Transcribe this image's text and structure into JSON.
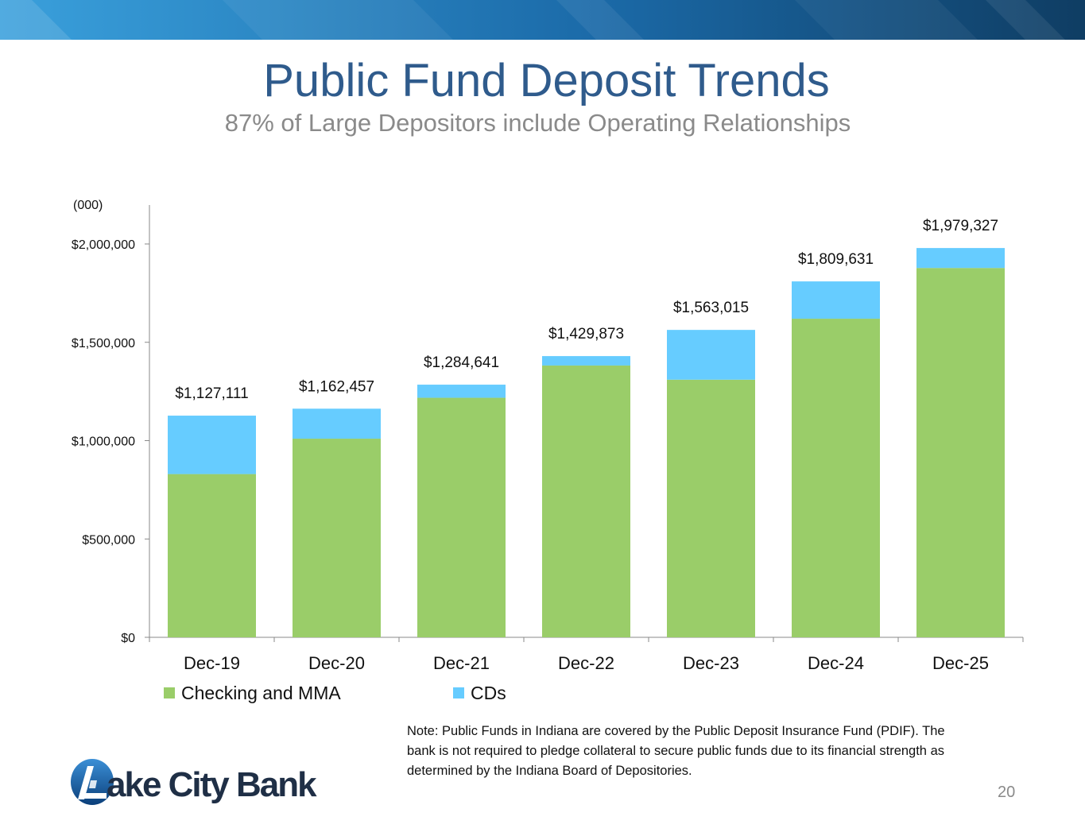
{
  "slide": {
    "title": "Public Fund Deposit Trends",
    "subtitle": "87% of Large Depositors include Operating Relationships",
    "units": "(000)",
    "note": "Note: Public Funds in Indiana are covered by the Public Deposit Insurance Fund (PDIF). The bank is not required to pledge collateral to secure public funds due to its financial strength as determined by the Indiana Board of Depositories.",
    "page_number": "20",
    "logo_text": "Lake City Bank"
  },
  "colors": {
    "title": "#2f5b8c",
    "checking": "#9acd69",
    "cds": "#66ccff",
    "banner_dark": "#0f3d63",
    "banner_light": "#3aa0dc"
  },
  "chart_data": {
    "type": "bar",
    "stacked": true,
    "categories": [
      "Dec-19",
      "Dec-20",
      "Dec-21",
      "Dec-22",
      "Dec-23",
      "Dec-24",
      "Dec-25"
    ],
    "series": [
      {
        "name": "Checking and MMA",
        "color": "#9acd69",
        "values": [
          830000,
          1010000,
          1218000,
          1382000,
          1310000,
          1620000,
          1878000
        ]
      },
      {
        "name": "CDs",
        "color": "#66ccff",
        "values": [
          297111,
          152457,
          66641,
          47873,
          253015,
          189631,
          101327
        ]
      }
    ],
    "totals": [
      1127111,
      1162457,
      1284641,
      1429873,
      1563015,
      1809631,
      1979327
    ],
    "total_labels": [
      "$1,127,111",
      "$1,162,457",
      "$1,284,641",
      "$1,429,873",
      "$1,563,015",
      "$1,809,631",
      "$1,979,327"
    ],
    "yticks": [
      0,
      500000,
      1000000,
      1500000,
      2000000
    ],
    "ytick_labels": [
      "$0",
      "$500,000",
      "$1,000,000",
      "$1,500,000",
      "$2,000,000"
    ],
    "ylim": [
      0,
      2200000
    ],
    "grid": false,
    "legend_position": "bottom-left"
  }
}
